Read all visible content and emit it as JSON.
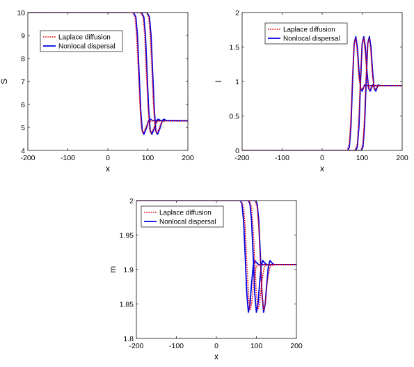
{
  "chart_data": [
    {
      "type": "line",
      "xlabel": "x",
      "ylabel": "S",
      "xlim": [
        -200,
        200
      ],
      "ylim": [
        4,
        10
      ],
      "xticks": [
        "-200",
        "-100",
        "0",
        "100",
        "200"
      ],
      "yticks": [
        "4",
        "5",
        "6",
        "7",
        "8",
        "9",
        "10"
      ],
      "legend_position": "top-left",
      "series": [
        {
          "name": "Laplace diffusion",
          "style": "dotted",
          "color": "#e8000b",
          "curves": [
            {
              "x": [
                -200,
                62,
                68,
                72,
                76,
                80,
                84,
                88,
                94,
                100,
                110,
                200
              ],
              "y": [
                10,
                10,
                9.8,
                9.0,
                7.5,
                6.0,
                4.95,
                4.75,
                4.95,
                5.22,
                5.28,
                5.28
              ]
            },
            {
              "x": [
                -200,
                82,
                88,
                92,
                96,
                100,
                104,
                108,
                114,
                120,
                130,
                200
              ],
              "y": [
                10,
                10,
                9.8,
                9.0,
                7.5,
                6.0,
                4.95,
                4.75,
                4.95,
                5.22,
                5.28,
                5.28
              ]
            },
            {
              "x": [
                -200,
                96,
                102,
                106,
                110,
                114,
                118,
                122,
                128,
                134,
                144,
                200
              ],
              "y": [
                10,
                10,
                9.8,
                9.0,
                7.5,
                6.0,
                4.95,
                4.75,
                4.95,
                5.22,
                5.28,
                5.28
              ]
            }
          ]
        },
        {
          "name": "Nonlocal dispersal",
          "style": "solid",
          "color": "#0000e6",
          "curves": [
            {
              "x": [
                -200,
                64,
                70,
                74,
                78,
                82,
                86,
                90,
                96,
                102,
                106,
                112,
                200
              ],
              "y": [
                10,
                10,
                9.8,
                9.0,
                7.4,
                5.8,
                4.85,
                4.7,
                4.95,
                5.3,
                5.36,
                5.3,
                5.29
              ]
            },
            {
              "x": [
                -200,
                84,
                90,
                94,
                98,
                102,
                106,
                110,
                116,
                122,
                126,
                132,
                200
              ],
              "y": [
                10,
                10,
                9.8,
                9.0,
                7.4,
                5.8,
                4.85,
                4.7,
                4.95,
                5.3,
                5.36,
                5.3,
                5.29
              ]
            },
            {
              "x": [
                -200,
                98,
                104,
                108,
                112,
                116,
                120,
                124,
                130,
                136,
                140,
                146,
                200
              ],
              "y": [
                10,
                10,
                9.8,
                9.0,
                7.4,
                5.8,
                4.85,
                4.7,
                4.95,
                5.3,
                5.36,
                5.3,
                5.29
              ]
            }
          ]
        }
      ]
    },
    {
      "type": "line",
      "xlabel": "x",
      "ylabel": "I",
      "xlim": [
        -200,
        200
      ],
      "ylim": [
        0,
        2
      ],
      "xticks": [
        "-200",
        "-100",
        "0",
        "100",
        "200"
      ],
      "yticks": [
        "0",
        "0.5",
        "1",
        "1.5",
        "2"
      ],
      "legend_position": "top-center",
      "series": [
        {
          "name": "Laplace diffusion",
          "style": "dotted",
          "color": "#e8000b",
          "curves": [
            {
              "x": [
                -200,
                62,
                68,
                72,
                76,
                80,
                84,
                88,
                92,
                98,
                104,
                110,
                200
              ],
              "y": [
                0,
                0,
                0.1,
                0.5,
                1.1,
                1.55,
                1.62,
                1.4,
                1.05,
                0.88,
                0.92,
                0.94,
                0.94
              ]
            },
            {
              "x": [
                -200,
                82,
                88,
                92,
                96,
                100,
                104,
                108,
                112,
                118,
                124,
                130,
                200
              ],
              "y": [
                0,
                0,
                0.1,
                0.5,
                1.1,
                1.55,
                1.62,
                1.4,
                1.05,
                0.88,
                0.92,
                0.94,
                0.94
              ]
            },
            {
              "x": [
                -200,
                96,
                102,
                106,
                110,
                114,
                118,
                122,
                126,
                132,
                138,
                144,
                200
              ],
              "y": [
                0,
                0,
                0.1,
                0.5,
                1.1,
                1.55,
                1.62,
                1.4,
                1.05,
                0.88,
                0.92,
                0.94,
                0.94
              ]
            }
          ]
        },
        {
          "name": "Nonlocal dispersal",
          "style": "solid",
          "color": "#0000e6",
          "curves": [
            {
              "x": [
                -200,
                64,
                68,
                72,
                76,
                80,
                84,
                88,
                92,
                96,
                100,
                106,
                112,
                200
              ],
              "y": [
                0,
                0,
                0.05,
                0.35,
                1.0,
                1.55,
                1.65,
                1.5,
                1.15,
                0.9,
                0.86,
                0.95,
                0.94,
                0.94
              ]
            },
            {
              "x": [
                -200,
                84,
                88,
                92,
                96,
                100,
                104,
                108,
                112,
                116,
                120,
                126,
                132,
                200
              ],
              "y": [
                0,
                0,
                0.05,
                0.35,
                1.0,
                1.55,
                1.65,
                1.5,
                1.15,
                0.9,
                0.86,
                0.95,
                0.94,
                0.94
              ]
            },
            {
              "x": [
                -200,
                98,
                102,
                106,
                110,
                114,
                118,
                122,
                126,
                130,
                134,
                140,
                146,
                200
              ],
              "y": [
                0,
                0,
                0.05,
                0.35,
                1.0,
                1.55,
                1.65,
                1.5,
                1.15,
                0.9,
                0.86,
                0.95,
                0.94,
                0.94
              ]
            }
          ]
        }
      ]
    },
    {
      "type": "line",
      "xlabel": "x",
      "ylabel": "m",
      "xlim": [
        -200,
        200
      ],
      "ylim": [
        1.8,
        2
      ],
      "xticks": [
        "-200",
        "-100",
        "0",
        "100",
        "200"
      ],
      "yticks": [
        "1.8",
        "1.85",
        "1.9",
        "1.95",
        "2"
      ],
      "legend_position": "top-right",
      "series": [
        {
          "name": "Laplace diffusion",
          "style": "dotted",
          "color": "#e8000b",
          "curves": [
            {
              "x": [
                -200,
                62,
                68,
                72,
                76,
                80,
                84,
                88,
                94,
                100,
                110,
                200
              ],
              "y": [
                2,
                2,
                1.99,
                1.96,
                1.91,
                1.865,
                1.842,
                1.85,
                1.885,
                1.905,
                1.907,
                1.907
              ]
            },
            {
              "x": [
                -200,
                82,
                88,
                92,
                96,
                100,
                104,
                108,
                114,
                120,
                130,
                200
              ],
              "y": [
                2,
                2,
                1.99,
                1.96,
                1.91,
                1.865,
                1.842,
                1.85,
                1.885,
                1.905,
                1.907,
                1.907
              ]
            },
            {
              "x": [
                -200,
                96,
                102,
                106,
                110,
                114,
                118,
                122,
                128,
                134,
                144,
                200
              ],
              "y": [
                2,
                2,
                1.99,
                1.96,
                1.91,
                1.865,
                1.842,
                1.85,
                1.885,
                1.905,
                1.907,
                1.907
              ]
            }
          ]
        },
        {
          "name": "Nonlocal dispersal",
          "style": "solid",
          "color": "#0000e6",
          "curves": [
            {
              "x": [
                -200,
                60,
                64,
                68,
                72,
                76,
                80,
                84,
                88,
                92,
                96,
                100,
                106,
                200
              ],
              "y": [
                2,
                2,
                1.995,
                1.97,
                1.92,
                1.865,
                1.838,
                1.85,
                1.88,
                1.905,
                1.913,
                1.91,
                1.907,
                1.907
              ]
            },
            {
              "x": [
                -200,
                80,
                84,
                88,
                92,
                96,
                100,
                104,
                108,
                112,
                116,
                120,
                126,
                200
              ],
              "y": [
                2,
                2,
                1.995,
                1.97,
                1.92,
                1.865,
                1.838,
                1.85,
                1.88,
                1.905,
                1.913,
                1.91,
                1.907,
                1.907
              ]
            },
            {
              "x": [
                -200,
                98,
                102,
                106,
                110,
                114,
                118,
                122,
                126,
                130,
                134,
                138,
                144,
                200
              ],
              "y": [
                2,
                2,
                1.995,
                1.97,
                1.92,
                1.865,
                1.838,
                1.85,
                1.88,
                1.905,
                1.913,
                1.91,
                1.907,
                1.907
              ]
            }
          ]
        }
      ]
    }
  ]
}
